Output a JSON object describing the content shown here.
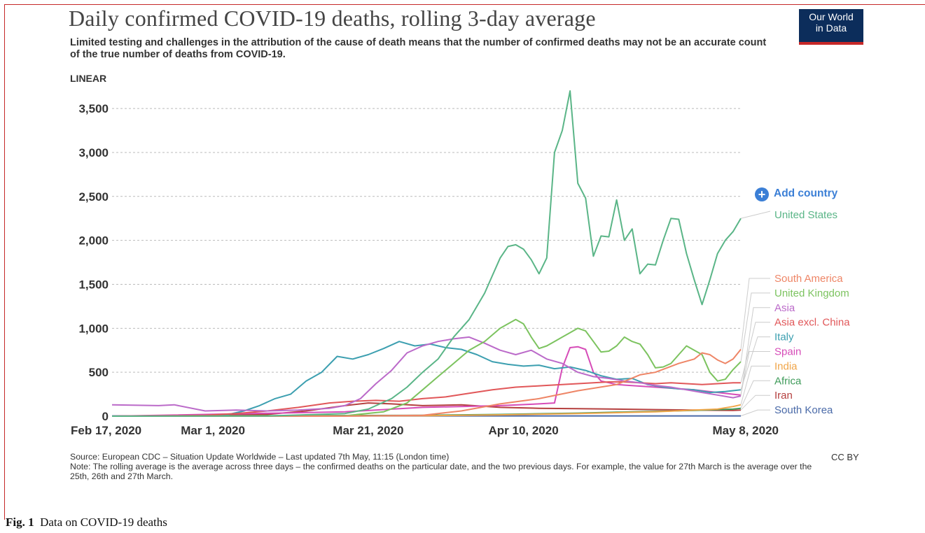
{
  "figure": {
    "title": "Daily confirmed COVID-19 deaths, rolling 3-day average",
    "subtitle": "Limited testing and challenges in the attribution of the cause of death means that the number of confirmed deaths may not be an accurate count of the true number of deaths from COVID-19.",
    "scale_label": "LINEAR",
    "logo_line1": "Our World",
    "logo_line2": "in Data",
    "add_country_label": "Add country",
    "source": "Source: European CDC – Situation Update Worldwide – Last updated 7th May, 11:15 (London time)",
    "note": "Note: The rolling average is the average across three days – the confirmed deaths on the particular date, and the two previous days. For example, the value for 27th March is the average over the 25th, 26th and 27th March.",
    "license": "CC BY",
    "caption_label": "Fig. 1",
    "caption_text": "Data on COVID-19 deaths"
  },
  "chart_data": {
    "type": "line",
    "xlabel": "",
    "ylabel": "",
    "ylim": [
      0,
      3500
    ],
    "yticks": [
      0,
      500,
      1000,
      1500,
      2000,
      2500,
      3000,
      3500
    ],
    "ytick_labels": [
      "0",
      "500",
      "1,000",
      "1,500",
      "2,000",
      "2,500",
      "3,000",
      "3,500"
    ],
    "xlim_days": [
      0,
      81
    ],
    "xticks": [
      0,
      13,
      33,
      53,
      81
    ],
    "xtick_labels": [
      "Feb 17, 2020",
      "Mar 1, 2020",
      "Mar 21, 2020",
      "Apr 10, 2020",
      "May 8, 2020"
    ],
    "grid": true,
    "legend_position": "right",
    "series": [
      {
        "name": "United States",
        "color": "#5ab587",
        "x": [
          0,
          20,
          30,
          33,
          36,
          38,
          40,
          42,
          44,
          46,
          47,
          48,
          49,
          50,
          51,
          52,
          53,
          54,
          55,
          56,
          57,
          58,
          59,
          60,
          61,
          62,
          63,
          64,
          65,
          66,
          67,
          68,
          69,
          70,
          71,
          72,
          73,
          74,
          75,
          76,
          77,
          78,
          79,
          80,
          81
        ],
        "y": [
          0,
          2,
          30,
          80,
          200,
          330,
          500,
          650,
          900,
          1100,
          1250,
          1400,
          1600,
          1800,
          1930,
          1950,
          1900,
          1780,
          1620,
          1800,
          3000,
          3250,
          3700,
          2650,
          2480,
          1820,
          2050,
          2040,
          2460,
          2000,
          2130,
          1620,
          1730,
          1720,
          2000,
          2250,
          2240,
          1850,
          1550,
          1270,
          1550,
          1850,
          2000,
          2100,
          2250
        ]
      },
      {
        "name": "South America",
        "color": "#ee8566",
        "x": [
          0,
          30,
          40,
          45,
          50,
          55,
          60,
          65,
          68,
          70,
          73,
          75,
          76,
          77,
          78,
          79,
          80,
          81
        ],
        "y": [
          0,
          1,
          10,
          60,
          140,
          200,
          290,
          360,
          470,
          500,
          600,
          650,
          720,
          700,
          640,
          600,
          650,
          760
        ]
      },
      {
        "name": "United Kingdom",
        "color": "#7cc35f",
        "x": [
          0,
          30,
          35,
          38,
          40,
          42,
          44,
          46,
          48,
          50,
          52,
          53,
          54,
          55,
          56,
          57,
          58,
          59,
          60,
          61,
          62,
          63,
          64,
          65,
          66,
          67,
          68,
          69,
          70,
          71,
          72,
          73,
          74,
          75,
          76,
          77,
          78,
          79,
          80,
          81
        ],
        "y": [
          0,
          5,
          50,
          150,
          300,
          450,
          600,
          750,
          850,
          1000,
          1100,
          1050,
          900,
          770,
          800,
          850,
          900,
          950,
          1000,
          970,
          850,
          730,
          740,
          800,
          900,
          850,
          820,
          700,
          550,
          560,
          600,
          700,
          800,
          750,
          700,
          500,
          400,
          420,
          530,
          620
        ]
      },
      {
        "name": "Asia",
        "color": "#bb6ac9",
        "x": [
          0,
          6,
          8,
          12,
          16,
          20,
          24,
          28,
          30,
          32,
          34,
          36,
          38,
          40,
          42,
          44,
          46,
          48,
          50,
          52,
          54,
          56,
          58,
          60,
          62,
          64,
          66,
          68,
          70,
          72,
          74,
          76,
          78,
          80,
          81
        ],
        "y": [
          130,
          120,
          130,
          60,
          70,
          60,
          70,
          90,
          120,
          200,
          370,
          520,
          720,
          800,
          850,
          880,
          900,
          830,
          750,
          700,
          750,
          650,
          600,
          500,
          450,
          430,
          400,
          380,
          350,
          330,
          300,
          270,
          240,
          210,
          230
        ]
      },
      {
        "name": "Asia excl. China",
        "color": "#e15759",
        "x": [
          0,
          8,
          12,
          16,
          20,
          24,
          28,
          31,
          34,
          37,
          40,
          43,
          46,
          49,
          52,
          54,
          56,
          58,
          60,
          62,
          64,
          66,
          68,
          70,
          72,
          74,
          76,
          78,
          80,
          81
        ],
        "y": [
          0,
          5,
          10,
          30,
          60,
          100,
          150,
          170,
          180,
          170,
          200,
          220,
          260,
          300,
          330,
          340,
          350,
          360,
          370,
          380,
          390,
          390,
          380,
          370,
          380,
          370,
          360,
          370,
          380,
          380
        ]
      },
      {
        "name": "Italy",
        "color": "#3c9fb0",
        "x": [
          0,
          12,
          15,
          17,
          19,
          21,
          23,
          25,
          27,
          29,
          31,
          33,
          35,
          37,
          39,
          41,
          43,
          45,
          47,
          49,
          51,
          53,
          55,
          57,
          59,
          61,
          63,
          65,
          67,
          69,
          71,
          73,
          75,
          77,
          79,
          81
        ],
        "y": [
          0,
          5,
          20,
          60,
          120,
          200,
          250,
          400,
          500,
          680,
          650,
          700,
          770,
          850,
          800,
          820,
          780,
          760,
          700,
          620,
          590,
          570,
          580,
          540,
          560,
          520,
          460,
          420,
          430,
          360,
          330,
          310,
          300,
          270,
          280,
          300
        ]
      },
      {
        "name": "Spain",
        "color": "#d64cb8",
        "x": [
          0,
          30,
          40,
          50,
          55,
          57,
          58,
          59,
          60,
          61,
          62,
          63,
          64,
          65,
          70,
          75,
          80,
          81
        ],
        "y": [
          0,
          50,
          100,
          120,
          140,
          150,
          550,
          780,
          790,
          760,
          500,
          400,
          380,
          360,
          330,
          300,
          250,
          240
        ]
      },
      {
        "name": "India",
        "color": "#f0a548",
        "x": [
          0,
          40,
          50,
          60,
          65,
          70,
          75,
          78,
          80,
          81
        ],
        "y": [
          0,
          5,
          15,
          30,
          40,
          50,
          70,
          80,
          110,
          130
        ]
      },
      {
        "name": "Africa",
        "color": "#3f9b5a",
        "x": [
          0,
          40,
          50,
          60,
          65,
          70,
          75,
          80,
          81
        ],
        "y": [
          0,
          10,
          20,
          35,
          45,
          55,
          65,
          80,
          90
        ]
      },
      {
        "name": "Iran",
        "color": "#b5403f",
        "x": [
          0,
          20,
          25,
          30,
          33,
          36,
          40,
          45,
          50,
          55,
          60,
          65,
          70,
          75,
          80,
          81
        ],
        "y": [
          0,
          20,
          60,
          120,
          150,
          140,
          120,
          130,
          100,
          90,
          85,
          80,
          75,
          70,
          65,
          70
        ]
      },
      {
        "name": "South Korea",
        "color": "#4a6aa8",
        "x": [
          0,
          81
        ],
        "y": [
          3,
          3
        ]
      }
    ]
  }
}
